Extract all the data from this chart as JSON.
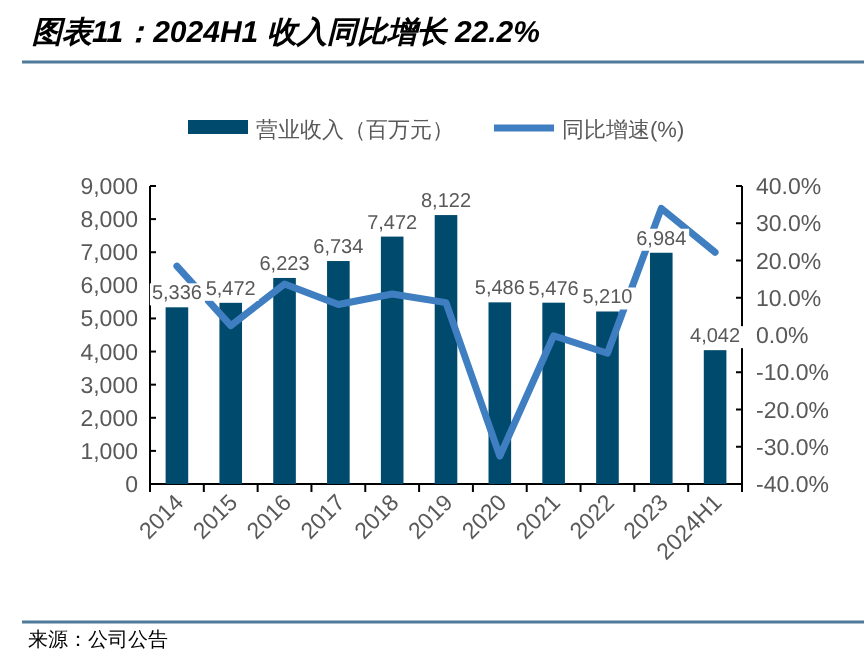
{
  "chart_data": {
    "type": "bar",
    "title": "图表11：2024H1 收入同比增长 22.2%",
    "categories": [
      "2014",
      "2015",
      "2016",
      "2017",
      "2018",
      "2019",
      "2020",
      "2021",
      "2022",
      "2023",
      "2024H1"
    ],
    "series": [
      {
        "name": "营业收入（百万元）",
        "color": "#004a6e",
        "values": [
          5336,
          5472,
          6223,
          6734,
          7472,
          8122,
          5486,
          5476,
          5210,
          6984,
          4042
        ],
        "value_labels": [
          "5,336",
          "5,472",
          "6,223",
          "6,734",
          "7,472",
          "8,122",
          "5,486",
          "5,476",
          "5,210",
          "6,984",
          "4,042"
        ]
      },
      {
        "name": "同比增速(%)",
        "type": "line",
        "axis": "y2",
        "color": "#3f7fc1",
        "values": [
          18.5,
          2.5,
          13.7,
          8.2,
          11.0,
          8.7,
          -32.5,
          -0.2,
          -4.9,
          34.0,
          22.2
        ]
      }
    ],
    "ylim": [
      0,
      9000
    ],
    "yticks": [
      {
        "value": 0,
        "label": "0"
      },
      {
        "value": 1000,
        "label": "1,000"
      },
      {
        "value": 2000,
        "label": "2,000"
      },
      {
        "value": 3000,
        "label": "3,000"
      },
      {
        "value": 4000,
        "label": "4,000"
      },
      {
        "value": 5000,
        "label": "5,000"
      },
      {
        "value": 6000,
        "label": "6,000"
      },
      {
        "value": 7000,
        "label": "7,000"
      },
      {
        "value": 8000,
        "label": "8,000"
      },
      {
        "value": 9000,
        "label": "9,000"
      }
    ],
    "y2lim": [
      -40,
      40
    ],
    "y2ticks": [
      {
        "value": -40,
        "label": "-40.0%"
      },
      {
        "value": -30,
        "label": "-30.0%"
      },
      {
        "value": -20,
        "label": "-20.0%"
      },
      {
        "value": -10,
        "label": "-10.0%"
      },
      {
        "value": 0,
        "label": "0.0%"
      },
      {
        "value": 10,
        "label": "10.0%"
      },
      {
        "value": 20,
        "label": "20.0%"
      },
      {
        "value": 30,
        "label": "30.0%"
      },
      {
        "value": 40,
        "label": "40.0%"
      }
    ],
    "legend": "top",
    "grid": false,
    "annotations": [
      "来源：公司公告"
    ]
  }
}
